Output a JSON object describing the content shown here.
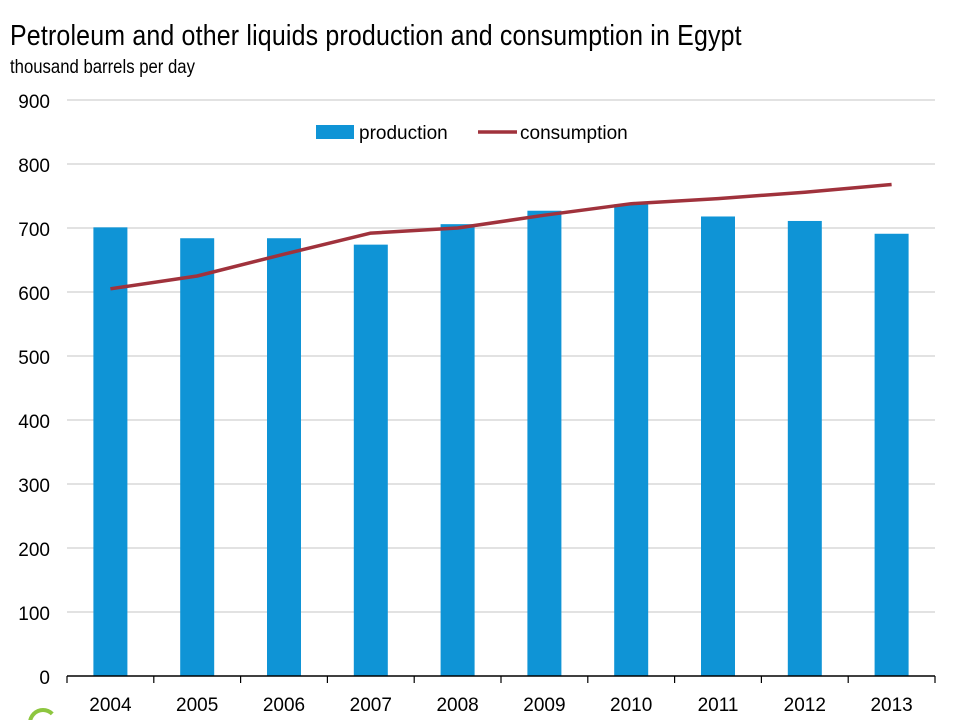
{
  "chart_data": {
    "type": "bar",
    "title": "Petroleum and other liquids production and consumption in Egypt",
    "subtitle": "thousand barrels per day",
    "categories": [
      "2004",
      "2005",
      "2006",
      "2007",
      "2008",
      "2009",
      "2010",
      "2011",
      "2012",
      "2013"
    ],
    "series": [
      {
        "name": "production",
        "kind": "bar",
        "color": "#0f94d6",
        "values": [
          701,
          684,
          684,
          674,
          706,
          727,
          737,
          718,
          711,
          691
        ]
      },
      {
        "name": "consumption",
        "kind": "line",
        "color": "#a0323c",
        "values": [
          605,
          625,
          659,
          692,
          700,
          720,
          738,
          746,
          756,
          768
        ]
      }
    ],
    "ylim": [
      0,
      900
    ],
    "yticks": [
      0,
      100,
      200,
      300,
      400,
      500,
      600,
      700,
      800,
      900
    ],
    "grid": true,
    "legend_position": "top"
  },
  "colors": {
    "gridline": "#d9d9d9",
    "axis": "#000000"
  }
}
